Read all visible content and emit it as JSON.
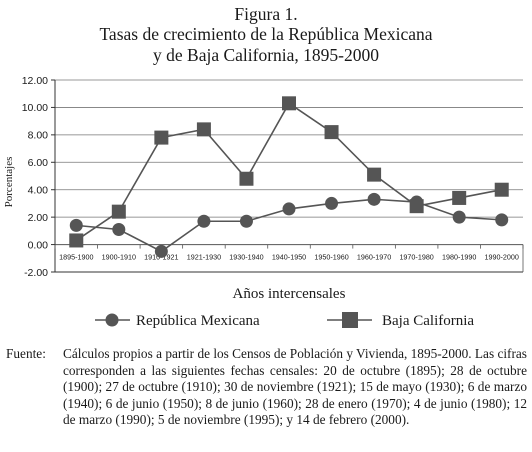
{
  "figure_label": "Figura 1.",
  "title_line1": "Tasas de crecimiento de la República Mexicana",
  "title_line2": "y de Baja California, 1895-2000",
  "source_label": "Fuente:",
  "source_text": "Cálculos propios a partir de los Censos de Población y Vivienda, 1895-2000. Las cifras corresponden a las siguientes fechas censales: 20 de octubre (1895); 28 de octubre (1900); 27 de octubre (1910); 30 de noviembre (1921); 15 de mayo (1930); 6 de marzo (1940); 6 de junio (1950); 8 de junio (1960); 28 de enero (1970); 4 de junio (1980); 12 de marzo (1990); 5 de noviembre (1995); y 14 de febrero (2000).",
  "chart_data": {
    "type": "line",
    "title": "Tasas de crecimiento de la República Mexicana y de Baja California, 1895-2000",
    "xlabel": "Años intercensales",
    "ylabel": "Porcentajes",
    "categories": [
      "1895-1900",
      "1900-1910",
      "1910-1921",
      "1921-1930",
      "1930-1940",
      "1940-1950",
      "1950-1960",
      "1960-1970",
      "1970-1980",
      "1980-1990",
      "1990-2000"
    ],
    "series": [
      {
        "name": "República Mexicana",
        "marker": "circle",
        "color": "#555555",
        "values": [
          1.4,
          1.1,
          -0.5,
          1.7,
          1.7,
          2.6,
          3.0,
          3.3,
          3.1,
          2.0,
          1.8
        ]
      },
      {
        "name": "Baja California",
        "marker": "square",
        "color": "#555555",
        "values": [
          0.3,
          2.4,
          7.8,
          8.4,
          4.8,
          10.3,
          8.2,
          5.1,
          2.8,
          3.4,
          4.0
        ]
      }
    ],
    "ylim": [
      -2,
      12
    ],
    "ytick_values": [
      -2,
      0,
      2,
      4,
      6,
      8,
      10,
      12
    ],
    "ytick_labels": [
      "-2.00",
      "0.00",
      "2.00",
      "4.00",
      "6.00",
      "8.00",
      "10.00",
      "12.00"
    ],
    "grid": "horizontal",
    "legend": "bottom"
  }
}
